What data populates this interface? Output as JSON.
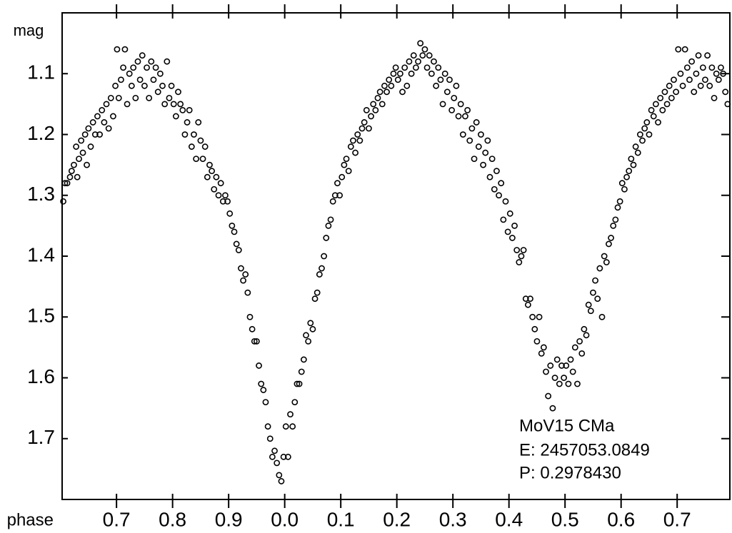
{
  "chart_data": {
    "type": "scatter",
    "ylabel": "mag",
    "xlabel": "phase",
    "annotations": [
      "MoV15 CMa",
      "E: 2457053.0849",
      "P: 0.2978430"
    ],
    "color": "#000000",
    "xlim": [
      -0.397,
      0.794
    ],
    "ylim": [
      1.8,
      1.0
    ],
    "xticks": [
      {
        "value": -0.3,
        "label": "0.7"
      },
      {
        "value": -0.2,
        "label": "0.8"
      },
      {
        "value": -0.1,
        "label": "0.9"
      },
      {
        "value": 0,
        "label": "0.0"
      },
      0.1,
      0.2,
      0.3,
      0.4,
      0.5,
      0.6,
      0.7
    ],
    "yticks": [
      1.1,
      1.2,
      1.3,
      1.4,
      1.5,
      1.6,
      1.7
    ],
    "x": [
      -0.395,
      -0.392,
      -0.388,
      -0.383,
      -0.38,
      -0.376,
      -0.372,
      -0.37,
      -0.367,
      -0.363,
      -0.36,
      -0.356,
      -0.353,
      -0.35,
      -0.346,
      -0.342,
      -0.338,
      -0.334,
      -0.33,
      -0.326,
      -0.322,
      -0.318,
      -0.314,
      -0.31,
      -0.306,
      -0.302,
      -0.299,
      -0.296,
      -0.292,
      -0.288,
      -0.285,
      -0.281,
      -0.277,
      -0.273,
      -0.27,
      -0.266,
      -0.262,
      -0.258,
      -0.254,
      -0.25,
      -0.246,
      -0.242,
      -0.238,
      -0.234,
      -0.23,
      -0.226,
      -0.222,
      -0.218,
      -0.214,
      -0.21,
      -0.206,
      -0.202,
      -0.198,
      -0.194,
      -0.19,
      -0.186,
      -0.182,
      -0.178,
      -0.174,
      -0.17,
      -0.166,
      -0.162,
      -0.158,
      -0.154,
      -0.15,
      -0.146,
      -0.142,
      -0.138,
      -0.134,
      -0.13,
      -0.126,
      -0.122,
      -0.118,
      -0.114,
      -0.11,
      -0.106,
      -0.102,
      -0.098,
      -0.094,
      -0.09,
      -0.086,
      -0.082,
      -0.078,
      -0.074,
      -0.07,
      -0.066,
      -0.062,
      -0.058,
      -0.054,
      -0.05,
      -0.046,
      -0.042,
      -0.038,
      -0.034,
      -0.03,
      -0.026,
      -0.022,
      -0.018,
      -0.014,
      -0.01,
      -0.006,
      -0.002,
      0.002,
      0.006,
      0.01,
      0.014,
      0.018,
      0.022,
      0.026,
      0.03,
      0.034,
      0.038,
      0.042,
      0.046,
      0.05,
      0.054,
      0.058,
      0.062,
      0.066,
      0.07,
      0.074,
      0.078,
      0.082,
      0.086,
      0.09,
      0.094,
      0.098,
      0.102,
      0.106,
      0.11,
      0.114,
      0.118,
      0.122,
      0.126,
      0.13,
      0.134,
      0.138,
      0.142,
      0.146,
      0.15,
      0.154,
      0.158,
      0.162,
      0.166,
      0.17,
      0.174,
      0.178,
      0.182,
      0.186,
      0.19,
      0.194,
      0.198,
      0.202,
      0.206,
      0.21,
      0.214,
      0.218,
      0.222,
      0.226,
      0.23,
      0.234,
      0.238,
      0.242,
      0.246,
      0.25,
      0.254,
      0.258,
      0.262,
      0.266,
      0.27,
      0.274,
      0.278,
      0.282,
      0.286,
      0.29,
      0.294,
      0.298,
      0.302,
      0.306,
      0.31,
      0.314,
      0.318,
      0.322,
      0.326,
      0.33,
      0.334,
      0.338,
      0.342,
      0.346,
      0.35,
      0.354,
      0.358,
      0.362,
      0.366,
      0.37,
      0.374,
      0.378,
      0.382,
      0.386,
      0.39,
      0.394,
      0.398,
      0.402,
      0.406,
      0.41,
      0.414,
      0.418,
      0.422,
      0.426,
      0.43,
      0.434,
      0.438,
      0.442,
      0.446,
      0.45,
      0.454,
      0.458,
      0.462,
      0.466,
      0.47,
      0.474,
      0.478,
      0.482,
      0.486,
      0.49,
      0.494,
      0.498,
      0.502,
      0.506,
      0.51,
      0.514,
      0.518,
      0.522,
      0.526,
      0.53,
      0.534,
      0.538,
      0.542,
      0.546,
      0.55,
      0.554,
      0.558,
      0.562,
      0.566,
      0.57,
      0.574,
      0.578,
      0.582,
      0.586,
      0.59,
      0.594,
      0.598,
      0.602,
      0.606,
      0.61,
      0.614,
      0.618,
      0.622,
      0.626,
      0.63,
      0.634,
      0.638,
      0.642,
      0.646,
      0.65,
      0.654,
      0.658,
      0.662,
      0.666,
      0.67,
      0.674,
      0.678,
      0.682,
      0.686,
      0.69,
      0.694,
      0.698,
      0.702,
      0.706,
      0.71,
      0.714,
      0.718,
      0.722,
      0.726,
      0.73,
      0.734,
      0.738,
      0.742,
      0.746,
      0.75,
      0.754,
      0.758,
      0.762,
      0.766,
      0.77,
      0.774,
      0.778,
      0.782,
      0.786,
      0.79
    ],
    "values": [
      1.31,
      1.28,
      1.28,
      1.27,
      1.26,
      1.25,
      1.22,
      1.27,
      1.24,
      1.21,
      1.23,
      1.2,
      1.25,
      1.19,
      1.22,
      1.18,
      1.2,
      1.17,
      1.2,
      1.16,
      1.18,
      1.15,
      1.19,
      1.14,
      1.17,
      1.12,
      1.06,
      1.14,
      1.11,
      1.09,
      1.06,
      1.15,
      1.1,
      1.12,
      1.09,
      1.14,
      1.08,
      1.11,
      1.07,
      1.12,
      1.09,
      1.14,
      1.08,
      1.11,
      1.09,
      1.13,
      1.1,
      1.12,
      1.15,
      1.08,
      1.14,
      1.12,
      1.15,
      1.17,
      1.13,
      1.15,
      1.16,
      1.2,
      1.18,
      1.16,
      1.22,
      1.2,
      1.24,
      1.18,
      1.21,
      1.24,
      1.22,
      1.27,
      1.25,
      1.26,
      1.29,
      1.27,
      1.3,
      1.28,
      1.31,
      1.3,
      1.31,
      1.33,
      1.35,
      1.36,
      1.38,
      1.39,
      1.42,
      1.44,
      1.43,
      1.46,
      1.5,
      1.52,
      1.54,
      1.54,
      1.58,
      1.61,
      1.62,
      1.64,
      1.68,
      1.7,
      1.73,
      1.72,
      1.74,
      1.76,
      1.77,
      1.73,
      1.68,
      1.73,
      1.66,
      1.68,
      1.64,
      1.61,
      1.61,
      1.59,
      1.57,
      1.53,
      1.54,
      1.51,
      1.52,
      1.47,
      1.46,
      1.43,
      1.42,
      1.4,
      1.37,
      1.35,
      1.34,
      1.31,
      1.3,
      1.28,
      1.3,
      1.27,
      1.25,
      1.24,
      1.26,
      1.22,
      1.21,
      1.23,
      1.2,
      1.21,
      1.19,
      1.18,
      1.16,
      1.19,
      1.17,
      1.15,
      1.16,
      1.14,
      1.13,
      1.15,
      1.12,
      1.13,
      1.11,
      1.12,
      1.1,
      1.09,
      1.11,
      1.1,
      1.13,
      1.09,
      1.12,
      1.08,
      1.1,
      1.07,
      1.09,
      1.08,
      1.05,
      1.07,
      1.06,
      1.09,
      1.07,
      1.1,
      1.08,
      1.12,
      1.09,
      1.11,
      1.15,
      1.1,
      1.13,
      1.11,
      1.16,
      1.14,
      1.12,
      1.17,
      1.15,
      1.2,
      1.17,
      1.16,
      1.21,
      1.19,
      1.24,
      1.18,
      1.22,
      1.2,
      1.25,
      1.23,
      1.21,
      1.27,
      1.24,
      1.29,
      1.26,
      1.3,
      1.28,
      1.34,
      1.31,
      1.36,
      1.33,
      1.37,
      1.35,
      1.39,
      1.41,
      1.4,
      1.39,
      1.47,
      1.48,
      1.47,
      1.5,
      1.52,
      1.54,
      1.5,
      1.56,
      1.55,
      1.59,
      1.63,
      1.58,
      1.65,
      1.6,
      1.57,
      1.61,
      1.58,
      1.6,
      1.58,
      1.61,
      1.57,
      1.59,
      1.55,
      1.61,
      1.54,
      1.56,
      1.52,
      1.53,
      1.48,
      1.49,
      1.46,
      1.44,
      1.47,
      1.42,
      1.5,
      1.4,
      1.41,
      1.38,
      1.37,
      1.35,
      1.34,
      1.32,
      1.31,
      1.28,
      1.29,
      1.27,
      1.26,
      1.24,
      1.25,
      1.22,
      1.23,
      1.2,
      1.21,
      1.19,
      1.18,
      1.2,
      1.16,
      1.17,
      1.15,
      1.18,
      1.14,
      1.16,
      1.13,
      1.15,
      1.12,
      1.14,
      1.11,
      1.13,
      1.06,
      1.1,
      1.12,
      1.06,
      1.09,
      1.11,
      1.08,
      1.13,
      1.1,
      1.07,
      1.12,
      1.09,
      1.11,
      1.07,
      1.12,
      1.09,
      1.14,
      1.1,
      1.11,
      1.09,
      1.1,
      1.13,
      1.15
    ]
  }
}
